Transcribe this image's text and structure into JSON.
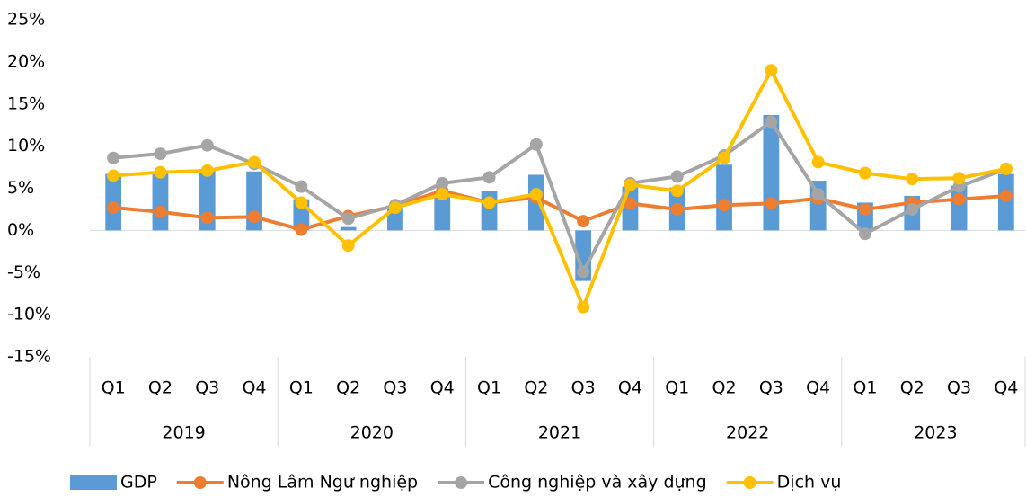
{
  "chart_data": {
    "type": "combo",
    "categories": [
      "Q1",
      "Q2",
      "Q3",
      "Q4",
      "Q1",
      "Q2",
      "Q3",
      "Q4",
      "Q1",
      "Q2",
      "Q3",
      "Q4",
      "Q1",
      "Q2",
      "Q3",
      "Q4",
      "Q1",
      "Q2",
      "Q3",
      "Q4"
    ],
    "category_groups": [
      "2019",
      "2020",
      "2021",
      "2022",
      "2023"
    ],
    "series": [
      {
        "name": "GDP",
        "type": "bar",
        "color": "#5b9bd5",
        "values": [
          6.7,
          6.8,
          7.3,
          7.0,
          3.7,
          0.4,
          2.7,
          4.5,
          4.7,
          6.6,
          -6.0,
          5.2,
          5.1,
          7.8,
          13.7,
          5.9,
          3.3,
          4.1,
          5.3,
          6.7
        ]
      },
      {
        "name": "Nông Lâm Ngư nghiệp",
        "type": "line",
        "color": "#ed7d31",
        "values": [
          2.7,
          2.2,
          1.5,
          1.6,
          0.1,
          1.7,
          2.9,
          4.7,
          3.3,
          3.9,
          1.1,
          3.2,
          2.5,
          3.0,
          3.2,
          3.8,
          2.5,
          3.3,
          3.7,
          4.1
        ]
      },
      {
        "name": "Công nghiệp và xây dựng",
        "type": "line",
        "color": "#a5a5a5",
        "values": [
          8.6,
          9.1,
          10.1,
          7.9,
          5.2,
          1.4,
          3.0,
          5.6,
          6.3,
          10.2,
          -4.9,
          5.6,
          6.4,
          8.9,
          12.9,
          4.3,
          -0.4,
          2.5,
          5.2,
          7.3
        ]
      },
      {
        "name": "Dịch vụ",
        "type": "line",
        "color": "#ffc000",
        "values": [
          6.5,
          6.9,
          7.1,
          8.1,
          3.3,
          -1.8,
          2.7,
          4.3,
          3.3,
          4.3,
          -9.1,
          5.4,
          4.7,
          8.6,
          19.0,
          8.1,
          6.8,
          6.1,
          6.2,
          7.3
        ]
      }
    ],
    "ylim": [
      -15,
      25
    ],
    "yticks": [
      {
        "value": -15,
        "label": "-15%"
      },
      {
        "value": -10,
        "label": "-10%"
      },
      {
        "value": -5,
        "label": "-5%"
      },
      {
        "value": 0,
        "label": "0%"
      },
      {
        "value": 5,
        "label": "5%"
      },
      {
        "value": 10,
        "label": "10%"
      },
      {
        "value": 15,
        "label": "15%"
      },
      {
        "value": 20,
        "label": "20%"
      },
      {
        "value": 25,
        "label": "25%"
      }
    ],
    "grid": false,
    "legend": "bottom"
  }
}
